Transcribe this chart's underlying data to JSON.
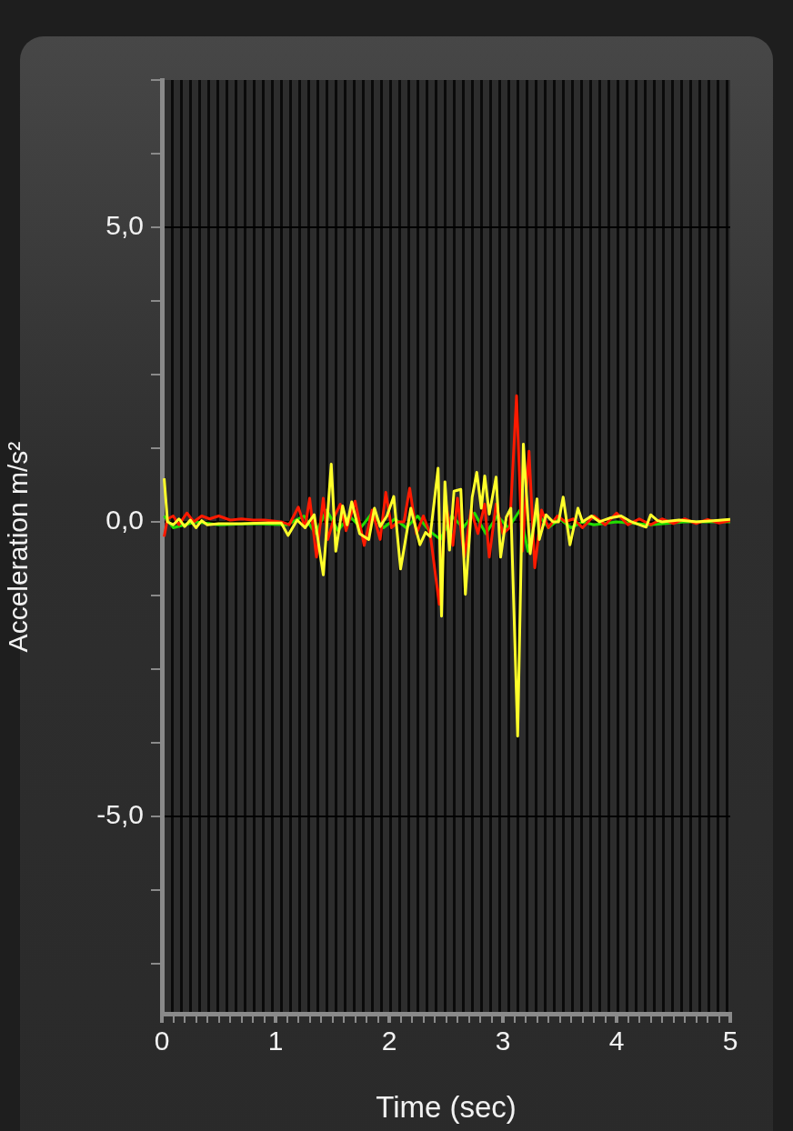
{
  "chart_data": {
    "type": "line",
    "xlabel": "Time (sec)",
    "ylabel": "Acceleration m/s²",
    "xlim": [
      0,
      5
    ],
    "ylim": [
      -8.35,
      7.5
    ],
    "xticks": [
      0,
      {
        "value": 0.1,
        "label": null
      },
      {
        "value": 0.2,
        "label": null
      },
      {
        "value": 0.3,
        "label": null
      },
      {
        "value": 0.4,
        "label": null
      },
      {
        "value": 0.5,
        "label": null
      },
      {
        "value": 0.6,
        "label": null
      },
      {
        "value": 0.7,
        "label": null
      },
      {
        "value": 0.8,
        "label": null
      },
      {
        "value": 0.9,
        "label": null
      },
      1,
      {
        "value": 1.1,
        "label": null
      },
      {
        "value": 1.2,
        "label": null
      },
      {
        "value": 1.3,
        "label": null
      },
      {
        "value": 1.4,
        "label": null
      },
      {
        "value": 1.5,
        "label": null
      },
      {
        "value": 1.6,
        "label": null
      },
      {
        "value": 1.7,
        "label": null
      },
      {
        "value": 1.8,
        "label": null
      },
      {
        "value": 1.9,
        "label": null
      },
      2,
      {
        "value": 2.1,
        "label": null
      },
      {
        "value": 2.2,
        "label": null
      },
      {
        "value": 2.3,
        "label": null
      },
      {
        "value": 2.4,
        "label": null
      },
      {
        "value": 2.5,
        "label": null
      },
      {
        "value": 2.6,
        "label": null
      },
      {
        "value": 2.7,
        "label": null
      },
      {
        "value": 2.8,
        "label": null
      },
      {
        "value": 2.9,
        "label": null
      },
      3,
      {
        "value": 3.1,
        "label": null
      },
      {
        "value": 3.2,
        "label": null
      },
      {
        "value": 3.3,
        "label": null
      },
      {
        "value": 3.4,
        "label": null
      },
      {
        "value": 3.5,
        "label": null
      },
      {
        "value": 3.6,
        "label": null
      },
      {
        "value": 3.7,
        "label": null
      },
      {
        "value": 3.8,
        "label": null
      },
      {
        "value": 3.9,
        "label": null
      },
      4,
      {
        "value": 4.1,
        "label": null
      },
      {
        "value": 4.2,
        "label": null
      },
      {
        "value": 4.3,
        "label": null
      },
      {
        "value": 4.4,
        "label": null
      },
      {
        "value": 4.5,
        "label": null
      },
      {
        "value": 4.6,
        "label": null
      },
      {
        "value": 4.7,
        "label": null
      },
      {
        "value": 4.8,
        "label": null
      },
      {
        "value": 4.9,
        "label": null
      },
      5
    ],
    "yticks": [
      {
        "value": -7.5,
        "label": null
      },
      {
        "value": -6.25,
        "label": null
      },
      {
        "value": -5,
        "label": "-5,0"
      },
      {
        "value": -3.75,
        "label": null
      },
      {
        "value": -2.5,
        "label": null
      },
      {
        "value": -1.25,
        "label": null
      },
      {
        "value": 0,
        "label": "0,0"
      },
      {
        "value": 1.25,
        "label": null
      },
      {
        "value": 2.5,
        "label": null
      },
      {
        "value": 3.75,
        "label": null
      },
      {
        "value": 5,
        "label": "5,0"
      },
      {
        "value": 6.25,
        "label": null
      },
      {
        "value": 7.5,
        "label": null
      }
    ],
    "grid": "y",
    "marker": "none",
    "line_style": "solid",
    "series": [
      {
        "color": "#22dd00",
        "x": [
          0.02,
          0.1,
          0.2,
          0.3,
          0.5,
          0.8,
          1.1,
          1.25,
          1.35,
          1.45,
          1.55,
          1.65,
          1.75,
          1.85,
          1.95,
          2.05,
          2.15,
          2.25,
          2.35,
          2.45,
          2.55,
          2.65,
          2.75,
          2.85,
          2.95,
          3.05,
          3.15,
          3.22,
          3.3,
          3.4,
          3.5,
          3.6,
          3.7,
          3.8,
          4.0,
          4.3,
          4.6,
          5.0
        ],
        "values": [
          0.1,
          -0.1,
          -0.05,
          0.0,
          -0.05,
          -0.03,
          -0.05,
          0.1,
          -0.2,
          0.2,
          -0.15,
          0.1,
          -0.1,
          0.15,
          -0.1,
          0.05,
          -0.1,
          0.1,
          -0.15,
          -0.3,
          0.1,
          -0.1,
          0.15,
          -0.2,
          0.1,
          -0.1,
          0.2,
          -0.5,
          0.15,
          -0.1,
          0.05,
          -0.1,
          0.0,
          -0.05,
          0.0,
          -0.05,
          0.0,
          0.0
        ]
      },
      {
        "color": "#ff1a00",
        "x": [
          0.02,
          0.05,
          0.1,
          0.15,
          0.22,
          0.28,
          0.35,
          0.42,
          0.5,
          0.6,
          0.7,
          0.8,
          0.9,
          1.05,
          1.12,
          1.2,
          1.26,
          1.3,
          1.36,
          1.42,
          1.46,
          1.52,
          1.57,
          1.62,
          1.7,
          1.78,
          1.85,
          1.92,
          1.97,
          2.02,
          2.08,
          2.13,
          2.18,
          2.24,
          2.3,
          2.36,
          2.44,
          2.5,
          2.56,
          2.6,
          2.66,
          2.72,
          2.78,
          2.84,
          2.88,
          2.94,
          3.0,
          3.06,
          3.12,
          3.17,
          3.23,
          3.28,
          3.34,
          3.4,
          3.48,
          3.55,
          3.62,
          3.7,
          3.8,
          3.9,
          4.0,
          4.1,
          4.2,
          4.3,
          4.4,
          4.5,
          4.6,
          4.7,
          4.8,
          4.9,
          5.0
        ],
        "values": [
          -0.25,
          0.05,
          0.1,
          -0.05,
          0.15,
          0.0,
          0.1,
          0.05,
          0.1,
          0.03,
          0.05,
          0.03,
          0.03,
          0.0,
          -0.05,
          0.25,
          -0.1,
          0.4,
          -0.6,
          0.4,
          -0.3,
          0.1,
          0.3,
          -0.15,
          0.35,
          -0.4,
          0.2,
          -0.3,
          0.5,
          -0.1,
          0.0,
          0.0,
          0.57,
          -0.2,
          0.1,
          -0.2,
          -1.4,
          0.3,
          -0.4,
          0.4,
          -0.6,
          0.2,
          -0.2,
          0.3,
          -0.6,
          0.3,
          -0.2,
          -0.1,
          2.14,
          -0.5,
          1.2,
          -0.78,
          0.2,
          -0.1,
          0.1,
          0.0,
          0.05,
          -0.1,
          0.1,
          -0.05,
          0.15,
          -0.05,
          0.05,
          -0.05,
          0.05,
          -0.03,
          0.05,
          -0.03,
          0.04,
          -0.02,
          0.02
        ]
      },
      {
        "color": "#ffff2a",
        "x": [
          0.02,
          0.05,
          0.1,
          0.15,
          0.2,
          0.25,
          0.3,
          0.35,
          0.4,
          0.5,
          0.7,
          0.9,
          1.05,
          1.11,
          1.19,
          1.26,
          1.34,
          1.42,
          1.49,
          1.53,
          1.59,
          1.63,
          1.67,
          1.74,
          1.82,
          1.87,
          1.92,
          1.98,
          2.04,
          2.1,
          2.19,
          2.27,
          2.32,
          2.36,
          2.43,
          2.46,
          2.49,
          2.53,
          2.57,
          2.63,
          2.67,
          2.73,
          2.77,
          2.81,
          2.84,
          2.88,
          2.94,
          2.98,
          3.03,
          3.07,
          3.13,
          3.18,
          3.24,
          3.3,
          3.32,
          3.38,
          3.44,
          3.49,
          3.53,
          3.59,
          3.66,
          3.7,
          3.78,
          3.85,
          3.95,
          4.04,
          4.13,
          4.26,
          4.3,
          4.36,
          4.4,
          4.55,
          4.7,
          4.85,
          5.0
        ],
        "values": [
          0.74,
          0.0,
          -0.05,
          0.05,
          -0.08,
          0.03,
          -0.1,
          0.02,
          -0.05,
          -0.03,
          -0.03,
          -0.02,
          -0.02,
          -0.23,
          0.03,
          -0.1,
          0.12,
          -0.9,
          0.98,
          -0.5,
          0.27,
          -0.05,
          0.34,
          -0.2,
          -0.3,
          0.23,
          -0.08,
          0.1,
          0.43,
          -0.8,
          0.23,
          -0.39,
          -0.18,
          -0.25,
          0.91,
          -1.6,
          0.68,
          -0.48,
          0.52,
          0.55,
          -1.23,
          0.42,
          0.84,
          0.23,
          0.78,
          0.13,
          0.76,
          -0.6,
          0.08,
          0.23,
          -3.64,
          1.32,
          -0.54,
          0.39,
          -0.3,
          0.12,
          0.0,
          0.0,
          0.42,
          -0.39,
          0.23,
          0.0,
          0.1,
          0.0,
          0.07,
          0.1,
          0.0,
          -0.09,
          0.12,
          0.02,
          0.0,
          0.03,
          0.0,
          0.02,
          0.04
        ]
      }
    ]
  }
}
